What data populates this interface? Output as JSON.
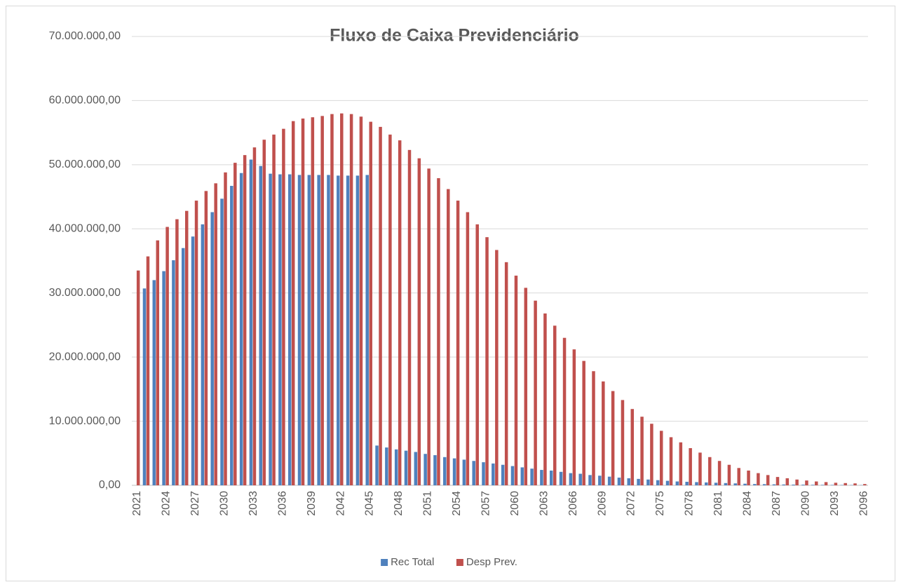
{
  "chart_data": {
    "type": "bar",
    "title": "Fluxo de Caixa Previdenciário",
    "categories": [
      "2021",
      null,
      null,
      "2024",
      null,
      null,
      "2027",
      null,
      null,
      "2030",
      null,
      null,
      "2033",
      null,
      null,
      "2036",
      null,
      null,
      "2039",
      null,
      null,
      "2042",
      null,
      null,
      "2045",
      null,
      null,
      "2048",
      null,
      null,
      "2051",
      null,
      null,
      "2054",
      null,
      null,
      "2057",
      null,
      null,
      "2060",
      null,
      null,
      "2063",
      null,
      null,
      "2066",
      null,
      null,
      "2069",
      null,
      null,
      "2072",
      null,
      null,
      "2075",
      null,
      null,
      "2078",
      null,
      null,
      "2081",
      null,
      null,
      "2084",
      null,
      null,
      "2087",
      null,
      null,
      "2090",
      null,
      null,
      "2093",
      null,
      null,
      "2096"
    ],
    "series": [
      {
        "name": "Rec Total",
        "color": "#4f81bd",
        "values": [
          0,
          30700000,
          32000000,
          33400000,
          35100000,
          37000000,
          38800000,
          40700000,
          42600000,
          44700000,
          46700000,
          48700000,
          50800000,
          49800000,
          48600000,
          48500000,
          48500000,
          48400000,
          48400000,
          48400000,
          48400000,
          48300000,
          48300000,
          48300000,
          48400000,
          6200000,
          5900000,
          5600000,
          5400000,
          5200000,
          4900000,
          4700000,
          4400000,
          4200000,
          4000000,
          3800000,
          3600000,
          3400000,
          3200000,
          3000000,
          2800000,
          2600000,
          2400000,
          2300000,
          2100000,
          1900000,
          1800000,
          1600000,
          1500000,
          1350000,
          1200000,
          1100000,
          1000000,
          900000,
          800000,
          700000,
          600000,
          550000,
          500000,
          450000,
          400000,
          350000,
          300000,
          250000,
          200000,
          180000,
          150000,
          130000,
          110000,
          100000,
          80000,
          70000,
          60000,
          50000,
          40000,
          30000
        ]
      },
      {
        "name": "Desp Prev.",
        "color": "#c0504d",
        "values": [
          33500000,
          35700000,
          38200000,
          40300000,
          41500000,
          42800000,
          44400000,
          45900000,
          47100000,
          48800000,
          50300000,
          51500000,
          52700000,
          53900000,
          54700000,
          55600000,
          56800000,
          57200000,
          57400000,
          57600000,
          57900000,
          58000000,
          57900000,
          57500000,
          56700000,
          55900000,
          54700000,
          53800000,
          52300000,
          51000000,
          49400000,
          47900000,
          46200000,
          44400000,
          42600000,
          40700000,
          38700000,
          36700000,
          34800000,
          32700000,
          30800000,
          28800000,
          26800000,
          24900000,
          23000000,
          21200000,
          19400000,
          17800000,
          16200000,
          14700000,
          13300000,
          11900000,
          10700000,
          9600000,
          8500000,
          7500000,
          6700000,
          5800000,
          5100000,
          4400000,
          3800000,
          3200000,
          2700000,
          2300000,
          1900000,
          1600000,
          1300000,
          1100000,
          900000,
          750000,
          600000,
          500000,
          400000,
          350000,
          300000,
          200000
        ]
      }
    ],
    "ylim": [
      0,
      70000000
    ],
    "yticks": [
      {
        "value": 0,
        "label": "0,00"
      },
      {
        "value": 10000000,
        "label": "10.000.000,00"
      },
      {
        "value": 20000000,
        "label": "20.000.000,00"
      },
      {
        "value": 30000000,
        "label": "30.000.000,00"
      },
      {
        "value": 40000000,
        "label": "40.000.000,00"
      },
      {
        "value": 50000000,
        "label": "50.000.000,00"
      },
      {
        "value": 60000000,
        "label": "60.000.000,00"
      },
      {
        "value": 70000000,
        "label": "70.000.000,00"
      }
    ],
    "grid": true,
    "legend": "bottom"
  }
}
